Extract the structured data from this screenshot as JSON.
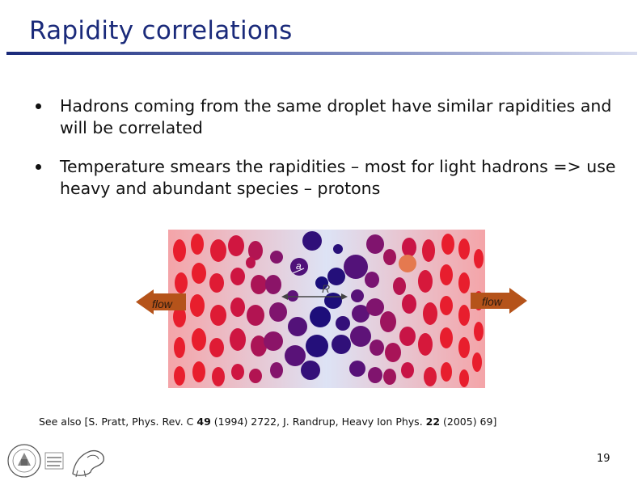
{
  "slide": {
    "title": "Rapidity correlations",
    "bullets": [
      {
        "text": "Hadrons coming from the same droplet have similar rapidities and will be correlated"
      },
      {
        "text": "Temperature smears the rapidities – most for light hadrons => use heavy and abundant species – protons"
      }
    ],
    "figure": {
      "left_arrow_label": "flow",
      "right_arrow_label": "flow",
      "small_label": "a",
      "big_label": "R"
    },
    "references": {
      "prefix": "See also [S. Pratt, Phys. Rev. C ",
      "vol1": "49",
      "mid": " (1994) 2722, J. Randrup, Heavy Ion Phys. ",
      "vol2": "22",
      "suffix": " (2005) 69]"
    },
    "page_number": "19"
  },
  "colors": {
    "title": "#1a2a7a",
    "arrow": "#b5531a",
    "droplet_core": "#0d0d7a",
    "droplet_edge": "#e61e2d"
  }
}
